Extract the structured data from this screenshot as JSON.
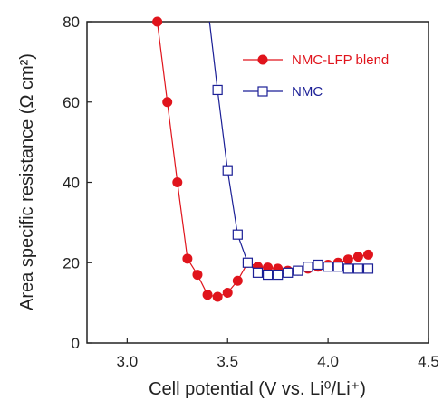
{
  "chart_data": {
    "type": "line",
    "xlabel": "Cell potential (V vs. Li⁰/Li⁺)",
    "ylabel": "Area specific resistance (Ω cm²)",
    "xlim": [
      2.8,
      4.5
    ],
    "ylim": [
      0,
      80
    ],
    "x_ticks": [
      3.0,
      3.5,
      4.0,
      4.5
    ],
    "x_tick_labels": [
      "3.0",
      "3.5",
      "4.0",
      "4.5"
    ],
    "y_ticks": [
      0,
      20,
      40,
      60,
      80
    ],
    "y_tick_labels": [
      "0",
      "20",
      "40",
      "60",
      "80"
    ],
    "grid": false,
    "legend_position": "top-right",
    "series": [
      {
        "name": "NMC-LFP blend",
        "color": "#e0141c",
        "marker": "filled-circle",
        "x": [
          3.15,
          3.2,
          3.25,
          3.3,
          3.35,
          3.4,
          3.45,
          3.5,
          3.55,
          3.6,
          3.65,
          3.7,
          3.75,
          3.8,
          3.85,
          3.9,
          3.95,
          4.0,
          4.05,
          4.1,
          4.15,
          4.2
        ],
        "y": [
          80,
          60,
          40,
          21,
          17,
          12,
          11.5,
          12.5,
          15.5,
          20,
          19,
          18.8,
          18.5,
          18,
          18,
          18.5,
          19,
          19.5,
          20,
          20.8,
          21.5,
          22
        ]
      },
      {
        "name": "NMC",
        "color": "#1b1f96",
        "marker": "open-square",
        "x": [
          3.45,
          3.5,
          3.55,
          3.6,
          3.65,
          3.7,
          3.75,
          3.8,
          3.85,
          3.9,
          3.95,
          4.0,
          4.05,
          4.1,
          4.15,
          4.2
        ],
        "y": [
          63,
          43,
          27,
          20,
          17.5,
          17,
          17,
          17.5,
          18,
          19,
          19.5,
          19,
          19,
          18.5,
          18.5,
          18.5
        ],
        "y_at_top_of_axis": {
          "x": 3.41,
          "y": 80
        }
      }
    ]
  }
}
